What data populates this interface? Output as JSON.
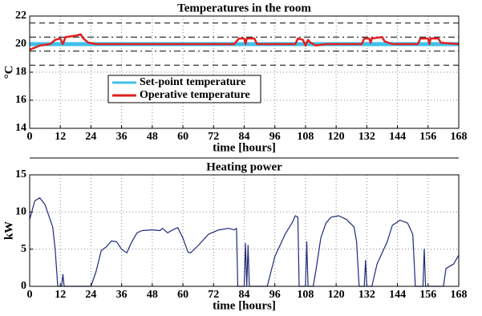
{
  "chart_data": [
    {
      "type": "line",
      "title": "Temperatures in the room",
      "xlabel": "time [hours]",
      "ylabel": "°C",
      "xlim": [
        0,
        168
      ],
      "xticks": [
        0,
        12,
        24,
        36,
        48,
        60,
        72,
        84,
        96,
        108,
        120,
        132,
        144,
        156,
        168
      ],
      "ylim": [
        14,
        22
      ],
      "yticks": [
        14,
        16,
        18,
        20,
        22
      ],
      "grid": true,
      "legend": "center left",
      "hlines": [
        {
          "value": 21.5,
          "style": "dashed"
        },
        {
          "value": 20.5,
          "style": "dashdot"
        },
        {
          "value": 19.5,
          "style": "dashdot"
        },
        {
          "value": 18.5,
          "style": "dashed"
        }
      ],
      "series": [
        {
          "name": "Set-point temperature",
          "color": "#3fc1ea",
          "x": [
            0,
            168
          ],
          "values": [
            20,
            20
          ]
        },
        {
          "name": "Operative temperature",
          "color": "#e02020",
          "x": [
            0,
            4,
            8,
            10,
            12,
            13,
            14,
            18,
            20,
            21,
            23,
            26,
            80,
            82,
            84,
            84.5,
            85,
            88,
            89,
            104,
            105,
            107,
            108,
            109,
            110,
            112,
            116,
            130,
            131,
            133,
            133.5,
            134,
            138,
            139,
            142,
            152,
            153,
            156,
            156.5,
            157,
            160,
            161,
            168
          ],
          "values": [
            19.6,
            19.9,
            20.0,
            20.3,
            20.4,
            20.0,
            20.5,
            20.6,
            20.7,
            20.4,
            20.1,
            20.0,
            20.0,
            20.4,
            20.4,
            20.0,
            20.4,
            20.4,
            20.0,
            20.0,
            20.4,
            20.3,
            19.9,
            20.3,
            20.1,
            19.9,
            20.0,
            20.0,
            20.4,
            20.4,
            20.1,
            20.4,
            20.5,
            20.2,
            20.0,
            20.0,
            20.4,
            20.4,
            20.0,
            20.4,
            20.4,
            20.1,
            20.0
          ]
        }
      ]
    },
    {
      "type": "line",
      "title": "Heating power",
      "xlabel": "time [hours]",
      "ylabel": "kW",
      "xlim": [
        0,
        168
      ],
      "xticks": [
        0,
        12,
        24,
        36,
        48,
        60,
        72,
        84,
        96,
        108,
        120,
        132,
        144,
        156,
        168
      ],
      "ylim": [
        0,
        15
      ],
      "yticks": [
        0,
        5,
        10,
        15
      ],
      "grid": true,
      "series": [
        {
          "color": "#1f2a78",
          "x": [
            0,
            2,
            4,
            6,
            9,
            10,
            11,
            12.5,
            13,
            13.5,
            24,
            26,
            28,
            30,
            32,
            34,
            36,
            38,
            40,
            42,
            44,
            48,
            51,
            52,
            54,
            56,
            58,
            60,
            62,
            63,
            66,
            70,
            74,
            78,
            80,
            81,
            81.5,
            84,
            84.5,
            85,
            85.5,
            86,
            93,
            96,
            100,
            103,
            104,
            105,
            105.5,
            108,
            108.5,
            109,
            111,
            112,
            114,
            116,
            118,
            121,
            124,
            127,
            128,
            129,
            131,
            131.5,
            132,
            134,
            136,
            140,
            142,
            145,
            148,
            150,
            151,
            154,
            154.5,
            155,
            162,
            163,
            166,
            168
          ],
          "values": [
            9,
            11.5,
            11.9,
            11,
            8,
            5,
            0,
            0,
            1.6,
            0,
            0,
            2,
            4.8,
            5.3,
            6.1,
            6,
            5,
            4.5,
            6,
            7.2,
            7.5,
            7.6,
            7.5,
            7.8,
            7.2,
            7.6,
            7.9,
            6.5,
            4.6,
            4.5,
            5.5,
            7,
            7.6,
            7.8,
            7.6,
            7.8,
            0,
            0,
            5.8,
            0,
            5.5,
            0,
            0,
            4,
            7,
            8.7,
            9.5,
            9.3,
            0,
            0,
            6,
            0,
            0,
            2,
            6.5,
            8.5,
            9.3,
            9.5,
            9,
            8,
            6,
            0,
            0,
            3.5,
            0,
            0,
            3,
            6,
            8.2,
            8.9,
            8.5,
            7,
            0,
            0,
            5,
            0,
            0,
            2.4,
            3,
            4.2
          ]
        }
      ]
    }
  ]
}
